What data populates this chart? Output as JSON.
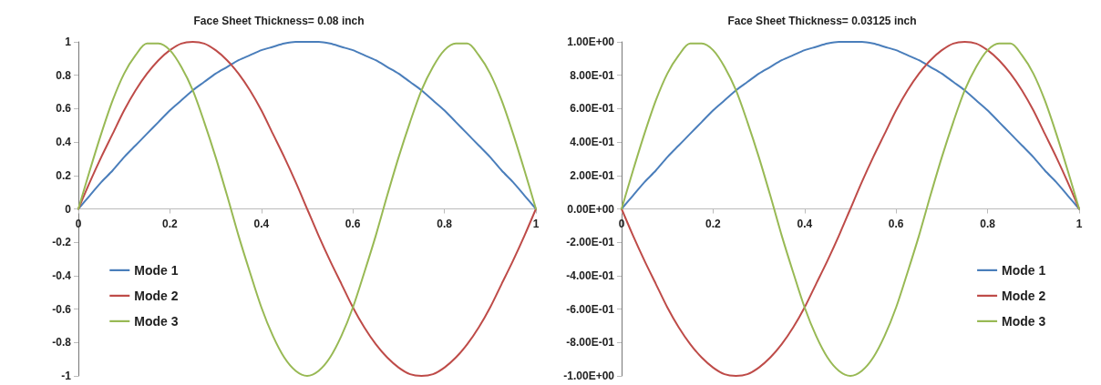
{
  "chart_data": [
    {
      "type": "line",
      "title": "Face Sheet Thickness= 0.08 inch",
      "x": [
        0,
        0.025,
        0.05,
        0.075,
        0.1,
        0.125,
        0.15,
        0.175,
        0.2,
        0.225,
        0.25,
        0.275,
        0.3,
        0.325,
        0.35,
        0.375,
        0.4,
        0.425,
        0.45,
        0.475,
        0.5,
        0.525,
        0.55,
        0.575,
        0.6,
        0.625,
        0.65,
        0.675,
        0.7,
        0.725,
        0.75,
        0.775,
        0.8,
        0.825,
        0.85,
        0.875,
        0.9,
        0.925,
        0.95,
        0.975,
        1
      ],
      "series": [
        {
          "name": "Mode 1",
          "color": "#4a7ebb",
          "values": [
            0,
            0.08,
            0.16,
            0.23,
            0.31,
            0.38,
            0.45,
            0.52,
            0.59,
            0.65,
            0.71,
            0.76,
            0.81,
            0.85,
            0.89,
            0.92,
            0.95,
            0.97,
            0.99,
            1,
            1,
            1,
            0.99,
            0.97,
            0.95,
            0.92,
            0.89,
            0.85,
            0.81,
            0.76,
            0.71,
            0.65,
            0.59,
            0.52,
            0.45,
            0.38,
            0.31,
            0.23,
            0.16,
            0.08,
            0
          ]
        },
        {
          "name": "Mode 2",
          "color": "#be4b48",
          "values": [
            0,
            0.16,
            0.31,
            0.45,
            0.59,
            0.71,
            0.81,
            0.89,
            0.95,
            0.99,
            1,
            0.99,
            0.95,
            0.89,
            0.81,
            0.71,
            0.59,
            0.45,
            0.31,
            0.16,
            0,
            -0.16,
            -0.31,
            -0.45,
            -0.59,
            -0.71,
            -0.81,
            -0.89,
            -0.95,
            -0.99,
            -1,
            -0.99,
            -0.95,
            -0.89,
            -0.81,
            -0.71,
            -0.59,
            -0.45,
            -0.31,
            -0.16,
            0
          ]
        },
        {
          "name": "Mode 3",
          "color": "#98b954",
          "values": [
            0,
            0.23,
            0.45,
            0.65,
            0.81,
            0.92,
            0.99,
            0.99,
            0.95,
            0.85,
            0.71,
            0.52,
            0.31,
            0.08,
            -0.16,
            -0.38,
            -0.59,
            -0.76,
            -0.89,
            -0.97,
            -1,
            -0.97,
            -0.89,
            -0.76,
            -0.59,
            -0.38,
            -0.16,
            0.08,
            0.31,
            0.52,
            0.71,
            0.85,
            0.95,
            0.99,
            0.99,
            0.92,
            0.81,
            0.65,
            0.45,
            0.23,
            0
          ]
        }
      ],
      "xlim": [
        0,
        1
      ],
      "xticks": [
        0,
        0.2,
        0.4,
        0.6,
        0.8,
        1
      ],
      "ylim": [
        -1,
        1
      ],
      "yticks": [
        -1,
        -0.8,
        -0.6,
        -0.4,
        -0.2,
        0,
        0.2,
        0.4,
        0.6,
        0.8,
        1
      ],
      "grid": false,
      "legend": "bottom left",
      "marker": "none",
      "line_style": "solid"
    },
    {
      "type": "line",
      "title": "Face Sheet Thickness= 0.03125 inch",
      "x": [
        0,
        0.025,
        0.05,
        0.075,
        0.1,
        0.125,
        0.15,
        0.175,
        0.2,
        0.225,
        0.25,
        0.275,
        0.3,
        0.325,
        0.35,
        0.375,
        0.4,
        0.425,
        0.45,
        0.475,
        0.5,
        0.525,
        0.55,
        0.575,
        0.6,
        0.625,
        0.65,
        0.675,
        0.7,
        0.725,
        0.75,
        0.775,
        0.8,
        0.825,
        0.85,
        0.875,
        0.9,
        0.925,
        0.95,
        0.975,
        1
      ],
      "series": [
        {
          "name": "Mode 1",
          "color": "#4a7ebb",
          "values": [
            0,
            0.08,
            0.16,
            0.23,
            0.31,
            0.38,
            0.45,
            0.52,
            0.59,
            0.65,
            0.71,
            0.76,
            0.81,
            0.85,
            0.89,
            0.92,
            0.95,
            0.97,
            0.99,
            1,
            1,
            1,
            0.99,
            0.97,
            0.95,
            0.92,
            0.89,
            0.85,
            0.81,
            0.76,
            0.71,
            0.65,
            0.59,
            0.52,
            0.45,
            0.38,
            0.31,
            0.23,
            0.16,
            0.08,
            0
          ]
        },
        {
          "name": "Mode 2",
          "color": "#be4b48",
          "values": [
            0,
            -0.16,
            -0.31,
            -0.45,
            -0.59,
            -0.71,
            -0.81,
            -0.89,
            -0.95,
            -0.99,
            -1,
            -0.99,
            -0.95,
            -0.89,
            -0.81,
            -0.71,
            -0.59,
            -0.45,
            -0.31,
            -0.16,
            0,
            0.16,
            0.31,
            0.45,
            0.59,
            0.71,
            0.81,
            0.89,
            0.95,
            0.99,
            1,
            0.99,
            0.95,
            0.89,
            0.81,
            0.71,
            0.59,
            0.45,
            0.31,
            0.16,
            0
          ]
        },
        {
          "name": "Mode 3",
          "color": "#98b954",
          "values": [
            0,
            0.23,
            0.45,
            0.65,
            0.81,
            0.92,
            0.99,
            0.99,
            0.95,
            0.85,
            0.71,
            0.52,
            0.31,
            0.08,
            -0.16,
            -0.38,
            -0.59,
            -0.76,
            -0.89,
            -0.97,
            -1,
            -0.97,
            -0.89,
            -0.76,
            -0.59,
            -0.38,
            -0.16,
            0.08,
            0.31,
            0.52,
            0.71,
            0.85,
            0.95,
            0.99,
            0.99,
            0.92,
            0.81,
            0.65,
            0.45,
            0.23,
            0
          ]
        }
      ],
      "xlim": [
        0,
        1
      ],
      "xticks": [
        0,
        0.2,
        0.4,
        0.6,
        0.8,
        1
      ],
      "ylim": [
        -1,
        1
      ],
      "yticks": [
        {
          "value": -1,
          "label": "-1.00E+00"
        },
        {
          "value": -0.8,
          "label": "-8.00E-01"
        },
        {
          "value": -0.6,
          "label": "-6.00E-01"
        },
        {
          "value": -0.4,
          "label": "-4.00E-01"
        },
        {
          "value": -0.2,
          "label": "-2.00E-01"
        },
        {
          "value": 0,
          "label": "0.00E+00"
        },
        {
          "value": 0.2,
          "label": "2.00E-01"
        },
        {
          "value": 0.4,
          "label": "4.00E-01"
        },
        {
          "value": 0.6,
          "label": "6.00E-01"
        },
        {
          "value": 0.8,
          "label": "8.00E-01"
        },
        {
          "value": 1,
          "label": "1.00E+00"
        }
      ],
      "grid": false,
      "legend": "bottom right",
      "marker": "none",
      "line_style": "solid"
    }
  ]
}
